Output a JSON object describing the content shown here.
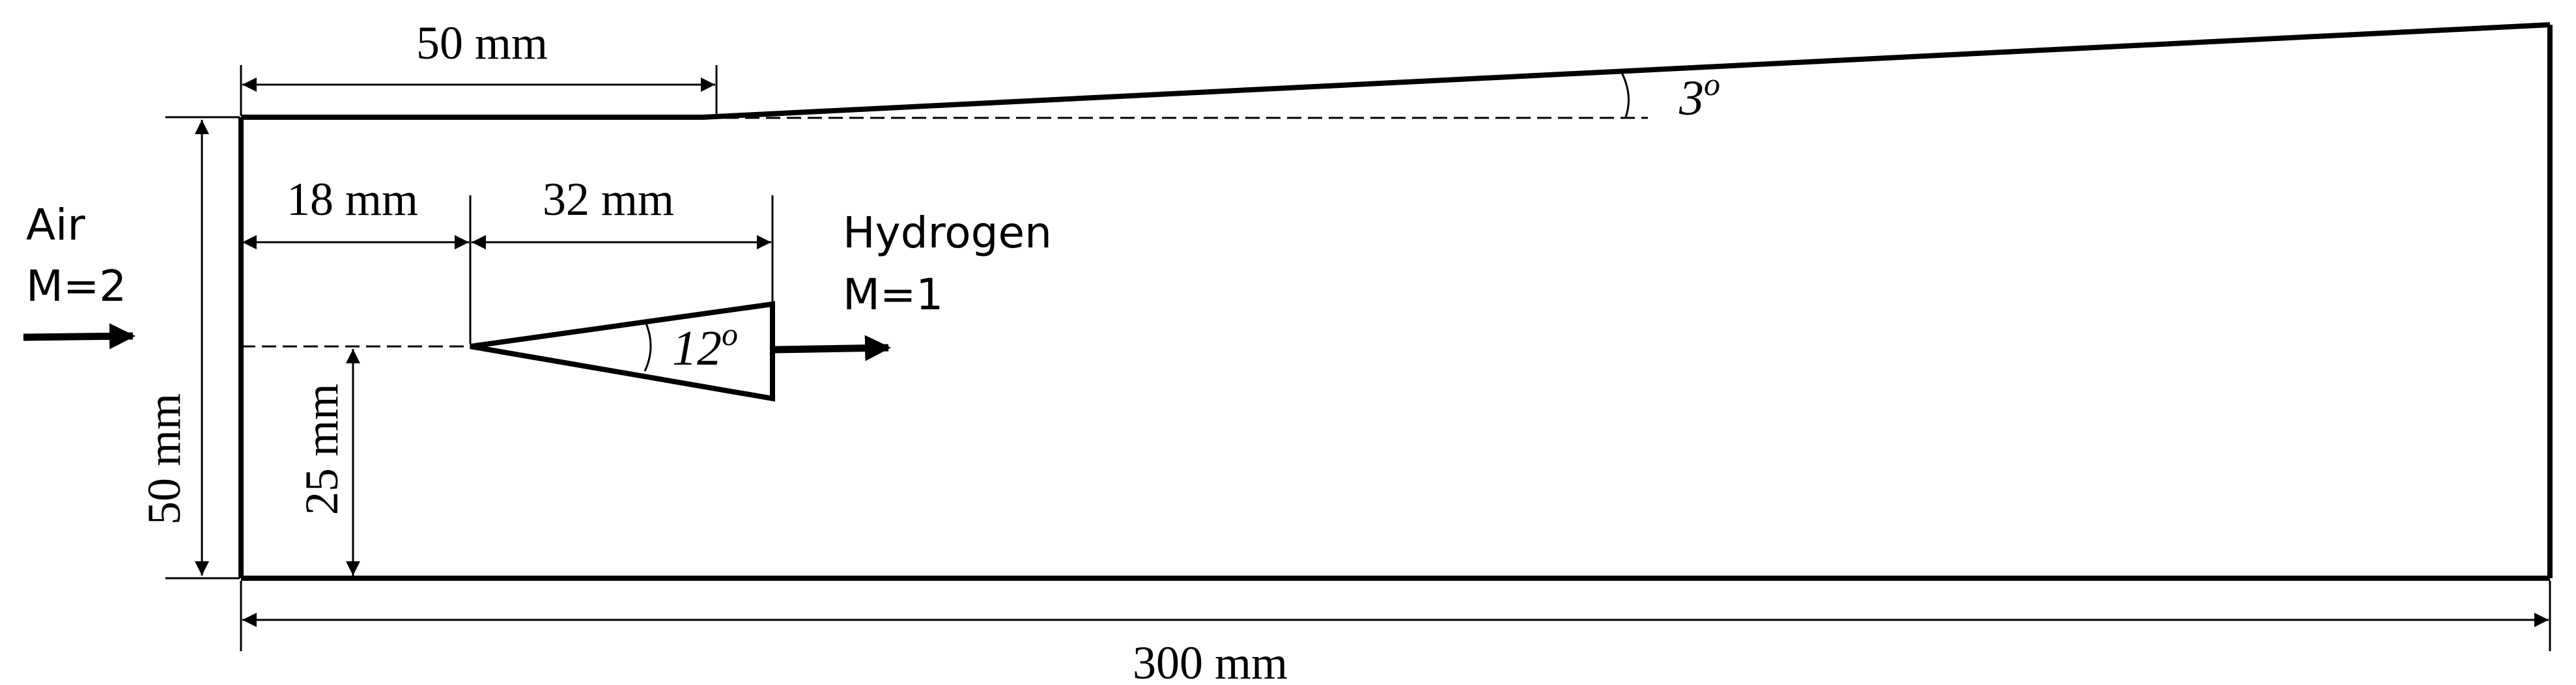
{
  "labels": {
    "top_length": "50 mm",
    "front_length": "18 mm",
    "strut_length": "32 mm",
    "inlet_height": "50 mm",
    "strut_offset": "25 mm",
    "total_length": "300 mm",
    "divergence_angle": "3",
    "strut_angle": "12",
    "degree_symbol": "o"
  },
  "inlet": {
    "name": "Air",
    "mach": "M=2"
  },
  "injector": {
    "name": "Hydrogen",
    "mach": "M=1"
  }
}
